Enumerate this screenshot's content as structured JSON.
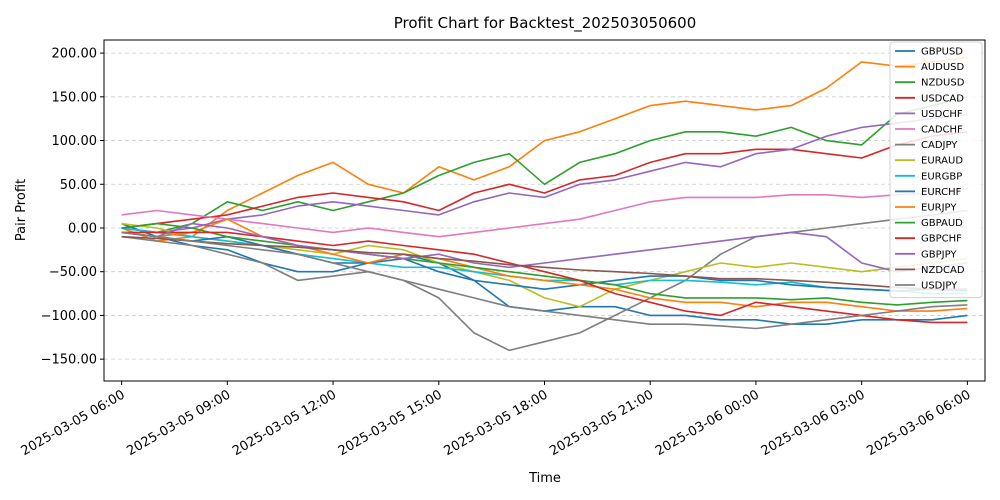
{
  "chart_data": {
    "type": "line",
    "title": "Profit Chart for Backtest_202503050600",
    "xlabel": "Time",
    "ylabel": "Pair Profit",
    "xlim": [
      -0.5,
      24.5
    ],
    "ylim": [
      -175,
      215
    ],
    "yticks": [
      -150,
      -100,
      -50,
      0,
      50,
      100,
      150,
      200
    ],
    "ytick_labels": [
      "−150.00",
      "−100.00",
      "−50.00",
      "0.00",
      "50.00",
      "100.00",
      "150.00",
      "200.00"
    ],
    "xticks": [
      0,
      3,
      6,
      9,
      12,
      15,
      18,
      21,
      24
    ],
    "xtick_labels": [
      "2025-03-05 06:00",
      "2025-03-05 09:00",
      "2025-03-05 12:00",
      "2025-03-05 15:00",
      "2025-03-05 18:00",
      "2025-03-05 21:00",
      "2025-03-06 00:00",
      "2025-03-06 03:00",
      "2025-03-06 06:00"
    ],
    "grid": "y-dashed",
    "legend_position": "top-right",
    "x": [
      0,
      1,
      2,
      3,
      4,
      5,
      6,
      7,
      8,
      9,
      10,
      11,
      12,
      13,
      14,
      15,
      16,
      17,
      18,
      19,
      20,
      21,
      22,
      23,
      24
    ],
    "series": [
      {
        "name": "GBPUSD",
        "color": "#1f77b4",
        "values": [
          5,
          -10,
          -20,
          -25,
          -40,
          -50,
          -50,
          -40,
          -30,
          -40,
          -60,
          -90,
          -95,
          -90,
          -90,
          -100,
          -100,
          -105,
          -105,
          -110,
          -110,
          -105,
          -105,
          -105,
          -100
        ]
      },
      {
        "name": "AUDUSD",
        "color": "#ff7f0e",
        "values": [
          0,
          -15,
          -10,
          20,
          40,
          60,
          75,
          50,
          40,
          70,
          55,
          70,
          100,
          110,
          125,
          140,
          145,
          140,
          135,
          140,
          160,
          190,
          185,
          190,
          195
        ]
      },
      {
        "name": "NZDUSD",
        "color": "#2ca02c",
        "values": [
          0,
          -5,
          5,
          30,
          20,
          30,
          20,
          30,
          40,
          60,
          75,
          85,
          50,
          75,
          85,
          100,
          110,
          110,
          105,
          115,
          100,
          95,
          130,
          140,
          150
        ]
      },
      {
        "name": "USDCAD",
        "color": "#d62728",
        "values": [
          0,
          5,
          10,
          15,
          25,
          35,
          40,
          35,
          30,
          20,
          40,
          50,
          40,
          55,
          60,
          75,
          85,
          85,
          90,
          90,
          85,
          80,
          95,
          105,
          110
        ]
      },
      {
        "name": "USDCHF",
        "color": "#9467bd",
        "values": [
          0,
          -5,
          0,
          10,
          15,
          25,
          30,
          25,
          20,
          15,
          30,
          40,
          35,
          50,
          55,
          65,
          75,
          70,
          85,
          90,
          105,
          115,
          120,
          125,
          130
        ]
      },
      {
        "name": "CADCHF",
        "color": "#e377c2",
        "values": [
          15,
          20,
          15,
          10,
          5,
          0,
          -5,
          0,
          -5,
          -10,
          -5,
          0,
          5,
          10,
          20,
          30,
          35,
          35,
          35,
          38,
          38,
          35,
          38,
          40,
          45
        ]
      },
      {
        "name": "CADJPY",
        "color": "#7f7f7f",
        "values": [
          -10,
          -15,
          -20,
          -30,
          -40,
          -60,
          -55,
          -50,
          -60,
          -80,
          -120,
          -140,
          -130,
          -120,
          -100,
          -80,
          -60,
          -30,
          -10,
          -5,
          0,
          5,
          10,
          15,
          20
        ]
      },
      {
        "name": "EURAUD",
        "color": "#bcbd22",
        "values": [
          5,
          0,
          -10,
          -15,
          -20,
          -25,
          -30,
          -20,
          -25,
          -40,
          -50,
          -60,
          -80,
          -90,
          -70,
          -60,
          -50,
          -40,
          -45,
          -40,
          -45,
          -50,
          -45,
          -40,
          -35
        ]
      },
      {
        "name": "EURGBP",
        "color": "#17becf",
        "values": [
          0,
          -5,
          -10,
          -15,
          -20,
          -30,
          -35,
          -40,
          -45,
          -45,
          -50,
          -55,
          -60,
          -60,
          -65,
          -60,
          -60,
          -62,
          -65,
          -62,
          -68,
          -70,
          -72,
          -75,
          -75
        ]
      },
      {
        "name": "EURCHF",
        "color": "#1f77b4",
        "values": [
          -5,
          -10,
          -15,
          -10,
          -20,
          -30,
          -40,
          -40,
          -35,
          -50,
          -60,
          -65,
          -70,
          -65,
          -60,
          -55,
          -55,
          -60,
          -60,
          -65,
          -68,
          -70,
          -72,
          -70,
          -72
        ]
      },
      {
        "name": "EURJPY",
        "color": "#ff7f0e",
        "values": [
          -5,
          -10,
          -5,
          10,
          -10,
          -20,
          -30,
          -40,
          -30,
          -35,
          -45,
          -55,
          -60,
          -65,
          -70,
          -80,
          -85,
          -85,
          -90,
          -85,
          -85,
          -90,
          -95,
          -95,
          -92
        ]
      },
      {
        "name": "GBPAUD",
        "color": "#2ca02c",
        "values": [
          0,
          5,
          0,
          -10,
          -15,
          -20,
          -25,
          -30,
          -35,
          -40,
          -45,
          -50,
          -55,
          -60,
          -65,
          -75,
          -80,
          -80,
          -80,
          -82,
          -80,
          -85,
          -88,
          -85,
          -83
        ]
      },
      {
        "name": "GBPCHF",
        "color": "#d62728",
        "values": [
          -5,
          -5,
          -5,
          -5,
          -10,
          -15,
          -20,
          -15,
          -20,
          -25,
          -30,
          -40,
          -50,
          -60,
          -75,
          -85,
          -95,
          -100,
          -85,
          -90,
          -95,
          -100,
          -105,
          -108,
          -108
        ]
      },
      {
        "name": "GBPJPY",
        "color": "#9467bd",
        "values": [
          -5,
          -10,
          5,
          0,
          -10,
          -20,
          -25,
          -30,
          -35,
          -30,
          -40,
          -45,
          -40,
          -35,
          -30,
          -25,
          -20,
          -15,
          -10,
          -5,
          -10,
          -40,
          -50,
          -45,
          -40
        ]
      },
      {
        "name": "NZDCAD",
        "color": "#8c564b",
        "values": [
          -10,
          -12,
          -15,
          -18,
          -20,
          -22,
          -25,
          -28,
          -30,
          -35,
          -38,
          -42,
          -45,
          -48,
          -50,
          -52,
          -55,
          -58,
          -58,
          -60,
          -62,
          -65,
          -68,
          -70,
          -70
        ]
      },
      {
        "name": "USDJPY",
        "color": "#7f7f7f",
        "values": [
          -5,
          -10,
          -15,
          -20,
          -25,
          -30,
          -40,
          -50,
          -60,
          -70,
          -80,
          -90,
          -95,
          -100,
          -105,
          -110,
          -110,
          -112,
          -115,
          -110,
          -105,
          -100,
          -95,
          -90,
          -88
        ]
      }
    ]
  }
}
